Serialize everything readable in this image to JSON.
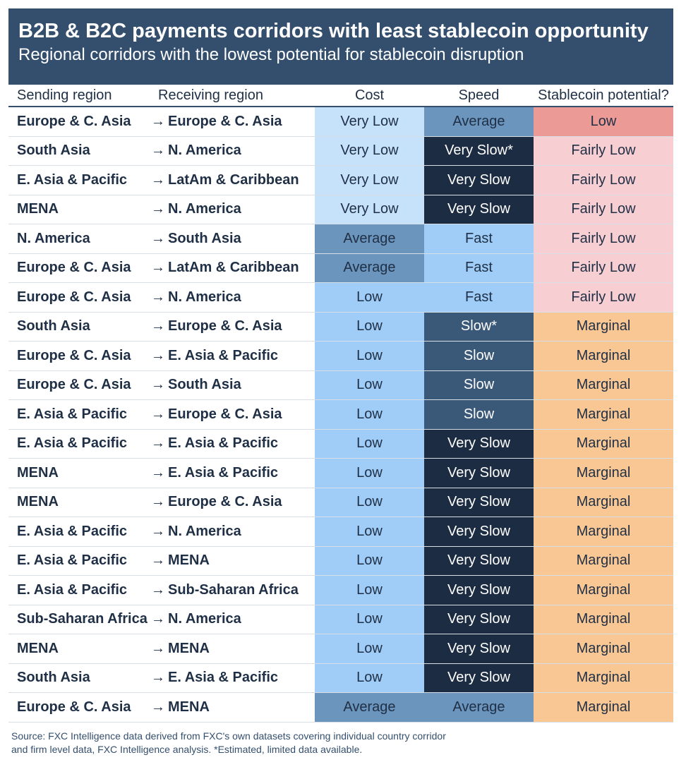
{
  "title": "B2B & B2C payments corridors with least stablecoin opportunity",
  "subtitle": "Regional corridors with the lowest potential for stablecoin disruption",
  "footer": {
    "line1": "Source: FXC Intelligence data derived from FXC's own datasets covering individual country corridor",
    "line2": "and firm level data, FXC Intelligence analysis. *Estimated, limited data available."
  },
  "colors": {
    "header_bg": "#344f6d",
    "cost": {
      "Very Low": "#c6e2fb",
      "Low": "#9fcdf8",
      "Average": "#6b95bd"
    },
    "speed": {
      "Fast": "#9fcdf8",
      "Average": "#6b95bd",
      "Slow": "#3a5878",
      "Very Slow": "#1c2c42"
    },
    "potential": {
      "Low": "#ec9a96",
      "Fairly Low": "#f7ced2",
      "Marginal": "#f9c793"
    }
  },
  "chart_data": {
    "type": "table",
    "columns": [
      "Sending region",
      "Receiving region",
      "Cost",
      "Speed",
      "Stablecoin potential?"
    ],
    "arrow": "→",
    "rows": [
      {
        "send": "Europe & C. Asia",
        "recv": "Europe & C. Asia",
        "cost": "Very Low",
        "speed": "Average",
        "potential": "Low"
      },
      {
        "send": "South Asia",
        "recv": "N. America",
        "cost": "Very Low",
        "speed": "Very Slow*",
        "potential": "Fairly Low"
      },
      {
        "send": "E. Asia & Pacific",
        "recv": "LatAm & Caribbean",
        "cost": "Very Low",
        "speed": "Very Slow",
        "potential": "Fairly Low"
      },
      {
        "send": "MENA",
        "recv": "N. America",
        "cost": "Very Low",
        "speed": "Very Slow",
        "potential": "Fairly Low"
      },
      {
        "send": "N. America",
        "recv": "South Asia",
        "cost": "Average",
        "speed": "Fast",
        "potential": "Fairly Low"
      },
      {
        "send": "Europe & C. Asia",
        "recv": "LatAm & Caribbean",
        "cost": "Average",
        "speed": "Fast",
        "potential": "Fairly Low"
      },
      {
        "send": "Europe & C. Asia",
        "recv": "N. America",
        "cost": "Low",
        "speed": "Fast",
        "potential": "Fairly Low"
      },
      {
        "send": "South Asia",
        "recv": "Europe & C. Asia",
        "cost": "Low",
        "speed": "Slow*",
        "potential": "Marginal"
      },
      {
        "send": "Europe & C. Asia",
        "recv": "E. Asia & Pacific",
        "cost": "Low",
        "speed": "Slow",
        "potential": "Marginal"
      },
      {
        "send": "Europe & C. Asia",
        "recv": "South Asia",
        "cost": "Low",
        "speed": "Slow",
        "potential": "Marginal"
      },
      {
        "send": "E. Asia & Pacific",
        "recv": "Europe & C. Asia",
        "cost": "Low",
        "speed": "Slow",
        "potential": "Marginal"
      },
      {
        "send": "E. Asia & Pacific",
        "recv": "E. Asia & Pacific",
        "cost": "Low",
        "speed": "Very Slow",
        "potential": "Marginal"
      },
      {
        "send": "MENA",
        "recv": "E. Asia & Pacific",
        "cost": "Low",
        "speed": "Very Slow",
        "potential": "Marginal"
      },
      {
        "send": "MENA",
        "recv": "Europe & C. Asia",
        "cost": "Low",
        "speed": "Very Slow",
        "potential": "Marginal"
      },
      {
        "send": "E. Asia & Pacific",
        "recv": "N. America",
        "cost": "Low",
        "speed": "Very Slow",
        "potential": "Marginal"
      },
      {
        "send": "E. Asia & Pacific",
        "recv": "MENA",
        "cost": "Low",
        "speed": "Very Slow",
        "potential": "Marginal"
      },
      {
        "send": "E. Asia & Pacific",
        "recv": "Sub-Saharan Africa",
        "cost": "Low",
        "speed": "Very Slow",
        "potential": "Marginal"
      },
      {
        "send": "Sub-Saharan Africa",
        "recv": "N. America",
        "cost": "Low",
        "speed": "Very Slow",
        "potential": "Marginal"
      },
      {
        "send": "MENA",
        "recv": "MENA",
        "cost": "Low",
        "speed": "Very Slow",
        "potential": "Marginal"
      },
      {
        "send": "South Asia",
        "recv": "E. Asia & Pacific",
        "cost": "Low",
        "speed": "Very Slow",
        "potential": "Marginal"
      },
      {
        "send": "Europe & C. Asia",
        "recv": "MENA",
        "cost": "Average",
        "speed": "Average",
        "potential": "Marginal"
      }
    ]
  }
}
